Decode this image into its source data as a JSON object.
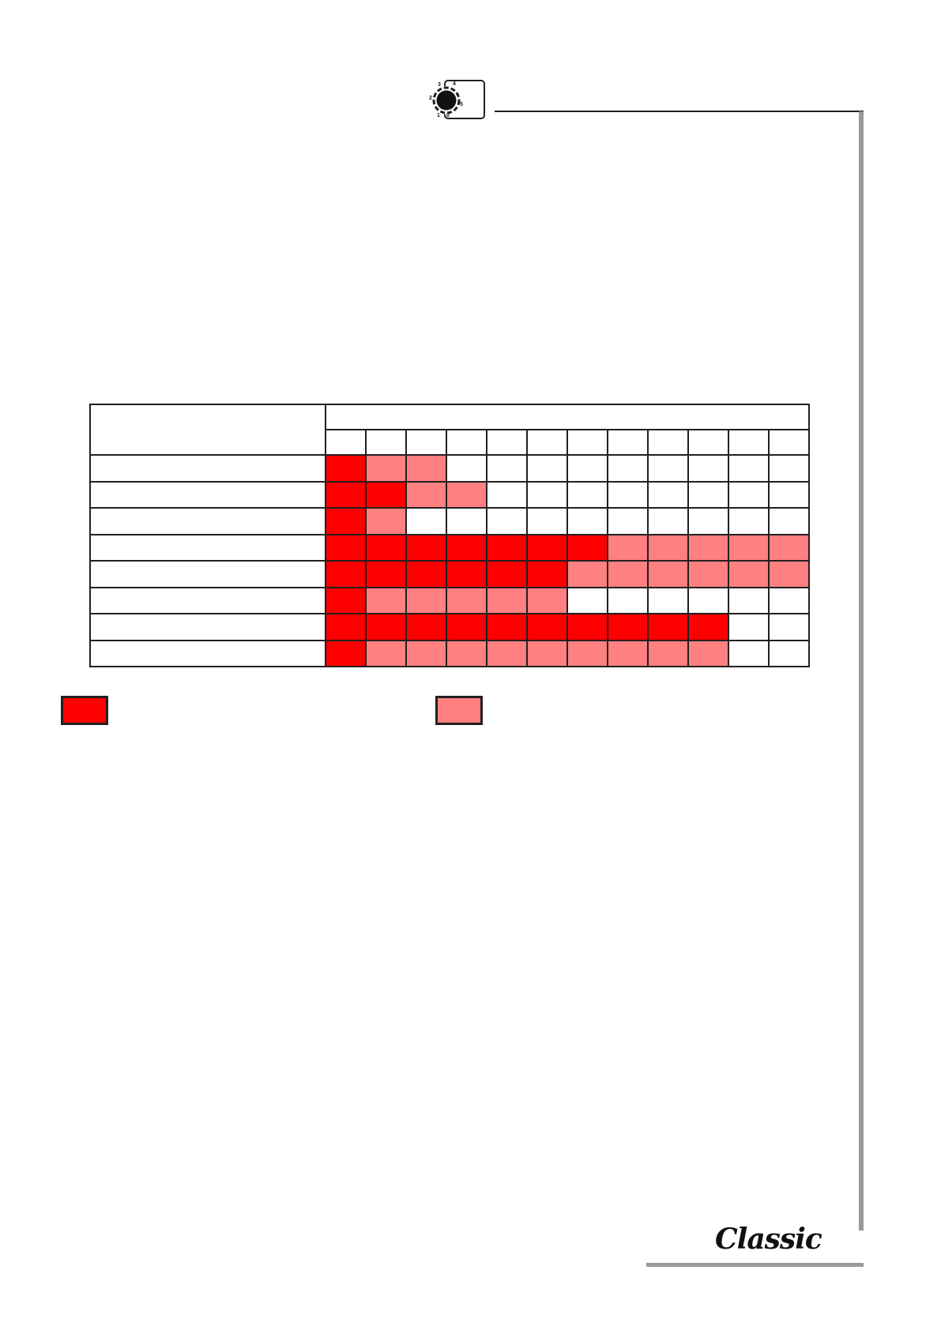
{
  "header": {
    "knob_icon": "dial-knob-icon",
    "knob_labels": [
      "0",
      "1",
      "2",
      "3",
      "4",
      "5"
    ]
  },
  "colors": {
    "full": "#ff0000",
    "partial": "#ff8080",
    "empty": "#ffffff",
    "border": "#231f20",
    "accent_bar": "#999999"
  },
  "table": {
    "columns": 12,
    "rows": [
      [
        "F",
        "P",
        "P",
        "E",
        "E",
        "E",
        "E",
        "E",
        "E",
        "E",
        "E",
        "E"
      ],
      [
        "F",
        "F",
        "P",
        "P",
        "E",
        "E",
        "E",
        "E",
        "E",
        "E",
        "E",
        "E"
      ],
      [
        "F",
        "P",
        "E",
        "E",
        "E",
        "E",
        "E",
        "E",
        "E",
        "E",
        "E",
        "E"
      ],
      [
        "F",
        "F",
        "F",
        "F",
        "F",
        "F",
        "F",
        "P",
        "P",
        "P",
        "P",
        "P"
      ],
      [
        "F",
        "F",
        "F",
        "F",
        "F",
        "F",
        "P",
        "P",
        "P",
        "P",
        "P",
        "P"
      ],
      [
        "F",
        "P",
        "P",
        "P",
        "P",
        "P",
        "E",
        "E",
        "E",
        "E",
        "E",
        "E"
      ],
      [
        "F",
        "F",
        "F",
        "F",
        "F",
        "F",
        "F",
        "F",
        "F",
        "F",
        "E",
        "E"
      ],
      [
        "F",
        "P",
        "P",
        "P",
        "P",
        "P",
        "P",
        "P",
        "P",
        "P",
        "E",
        "E"
      ]
    ]
  },
  "legend": [
    {
      "color": "#ff0000"
    },
    {
      "color": "#ff8080"
    }
  ],
  "footer": {
    "logo_text": "Classic"
  }
}
